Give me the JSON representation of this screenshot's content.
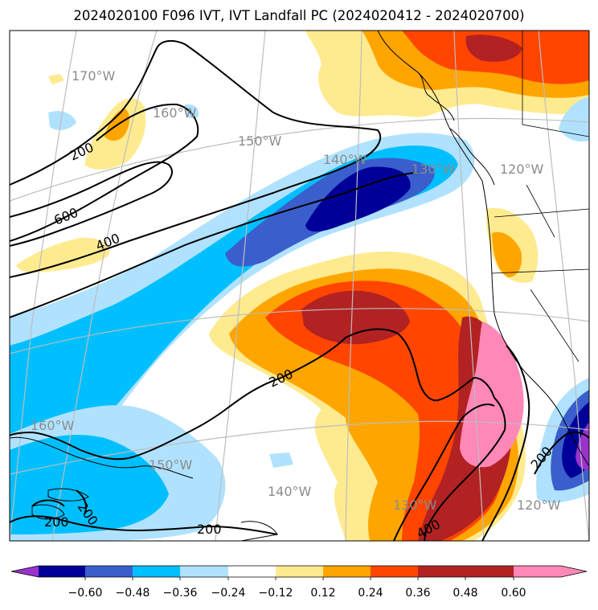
{
  "title": "2024020100 F096 IVT, IVT Landfall PC (2024020412 - 2024020700)",
  "map": {
    "graticule_labels": [
      "170°W",
      "160°W",
      "150°W",
      "140°W",
      "130°W",
      "120°W",
      "160°W",
      "150°W",
      "140°W",
      "130°W",
      "120°W"
    ],
    "contour_labels": [
      "200",
      "600",
      "400",
      "200",
      "200",
      "200",
      "200",
      "400",
      "200"
    ]
  },
  "colorbar": {
    "colors": [
      "#9933cc",
      "#000099",
      "#3a5fcd",
      "#00bfff",
      "#b0e2ff",
      "#ffffff",
      "#ffeb8f",
      "#ffa500",
      "#ff4500",
      "#b22222",
      "#ff88b8"
    ],
    "ticks": [
      "−0.60",
      "−0.48",
      "−0.36",
      "−0.24",
      "−0.12",
      "0.12",
      "0.24",
      "0.36",
      "0.48",
      "0.60"
    ]
  }
}
